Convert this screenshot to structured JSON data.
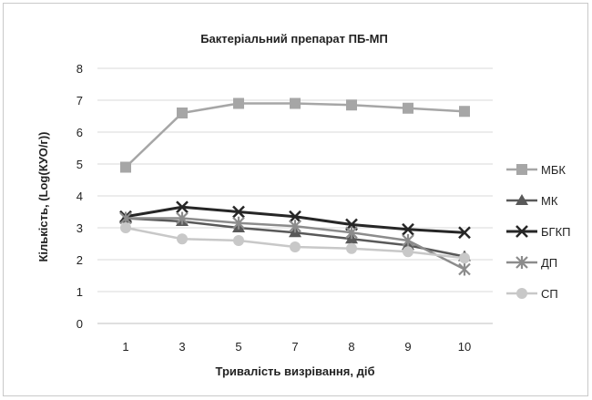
{
  "chart_data": {
    "type": "line",
    "title": "Бактеріальний препарат ПБ-МП",
    "xlabel": "Тривалість визрівання, діб",
    "ylabel": "Кількість, (Log(КУО/г))",
    "categories": [
      "1",
      "3",
      "5",
      "7",
      "8",
      "9",
      "10"
    ],
    "ylim": [
      0,
      8
    ],
    "yticks": [
      "0",
      "1",
      "2",
      "3",
      "4",
      "5",
      "6",
      "7",
      "8"
    ],
    "grid": "horizontal",
    "legend_position": "right",
    "series": [
      {
        "name": "МБК",
        "marker": "square",
        "color": "#a6a6a6",
        "width": 2.5,
        "values": [
          4.9,
          6.6,
          6.9,
          6.9,
          6.85,
          6.75,
          6.65
        ]
      },
      {
        "name": "МК",
        "marker": "triangle",
        "color": "#595959",
        "width": 2.5,
        "values": [
          3.3,
          3.2,
          3.0,
          2.85,
          2.65,
          2.45,
          2.1
        ]
      },
      {
        "name": "БГКП",
        "marker": "x",
        "color": "#262626",
        "width": 3,
        "values": [
          3.35,
          3.65,
          3.5,
          3.35,
          3.1,
          2.95,
          2.85
        ]
      },
      {
        "name": "ДП",
        "marker": "star",
        "color": "#8c8c8c",
        "width": 2.5,
        "values": [
          3.3,
          3.3,
          3.15,
          3.05,
          2.85,
          2.6,
          1.7
        ]
      },
      {
        "name": "СП",
        "marker": "circle",
        "color": "#c8c8c8",
        "width": 2.5,
        "values": [
          3.0,
          2.65,
          2.6,
          2.4,
          2.35,
          2.25,
          2.05
        ]
      }
    ]
  }
}
